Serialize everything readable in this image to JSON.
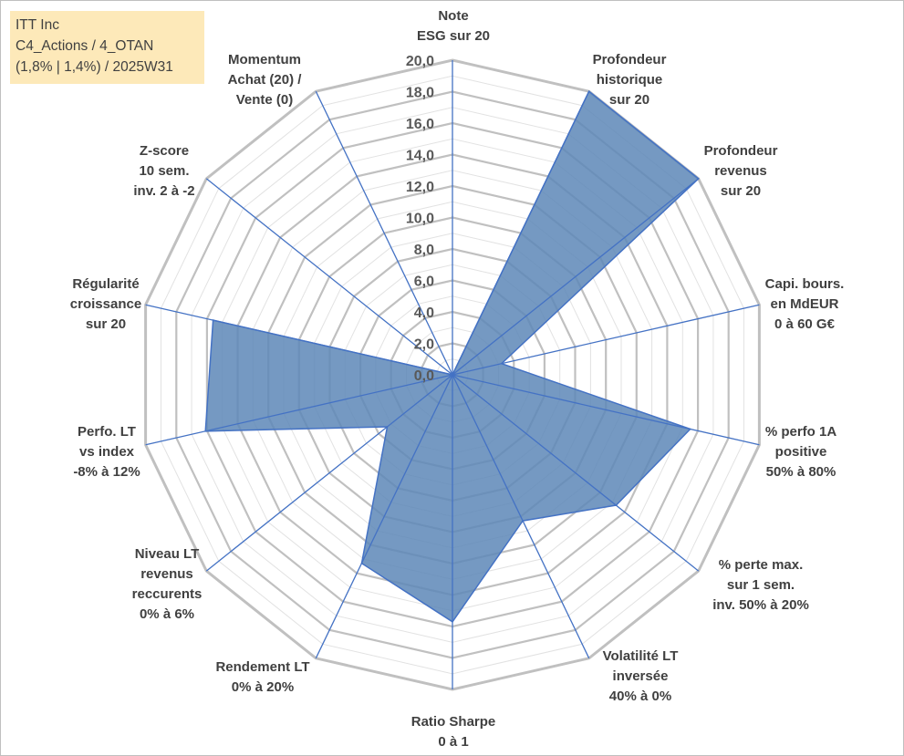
{
  "info": {
    "line1": "ITT Inc",
    "line2": "C4_Actions / 4_OTAN",
    "line3": "(1,8% | 1,4%) / 2025W31"
  },
  "chart_data": {
    "type": "radar",
    "title": "",
    "rlim": [
      0,
      20
    ],
    "ticks": [
      "0,0",
      "2,0",
      "4,0",
      "6,0",
      "8,0",
      "10,0",
      "12,0",
      "14,0",
      "16,0",
      "18,0",
      "20,0"
    ],
    "grid": true,
    "axes": [
      {
        "label": [
          "Note",
          "ESG sur 20"
        ],
        "value": 0
      },
      {
        "label": [
          "Profondeur",
          "historique",
          "sur 20"
        ],
        "value": 20
      },
      {
        "label": [
          "Profondeur",
          "revenus",
          "sur 20"
        ],
        "value": 20
      },
      {
        "label": [
          "Capi. bours.",
          "en MdEUR",
          "0 à 60 G€"
        ],
        "value": 3.2
      },
      {
        "label": [
          "% perfo 1A",
          "positive",
          "50% à 80%"
        ],
        "value": 15.5
      },
      {
        "label": [
          "% perte max.",
          "sur 1 sem.",
          "inv. 50% à 20%"
        ],
        "value": 13.3
      },
      {
        "label": [
          "Volatilité LT",
          "inversée",
          "40% à 0%"
        ],
        "value": 10.3
      },
      {
        "label": [
          "Ratio Sharpe",
          "0 à 1"
        ],
        "value": 15.7
      },
      {
        "label": [
          "Rendement LT",
          "0% à 20%"
        ],
        "value": 13.3
      },
      {
        "label": [
          "Niveau LT",
          "revenus",
          "reccurents",
          "0% à 6%"
        ],
        "value": 5.3
      },
      {
        "label": [
          "Perfo. LT",
          "vs index",
          "-8% à 12%"
        ],
        "value": 16.1
      },
      {
        "label": [
          "Régularité",
          "croissance",
          "sur 20"
        ],
        "value": 15.6
      },
      {
        "label": [
          "Z-score",
          "10 sem.",
          "inv. 2 à -2"
        ],
        "value": 0
      },
      {
        "label": [
          "Momentum",
          "Achat (20) /",
          "Vente (0)"
        ],
        "value": 0
      }
    ],
    "colors": {
      "fill": "#5d87b7",
      "stroke": "#4472c4",
      "grid_major": "#c0c0c0",
      "grid_minor": "#e2e2e2",
      "spoke": "#4472c4"
    }
  }
}
